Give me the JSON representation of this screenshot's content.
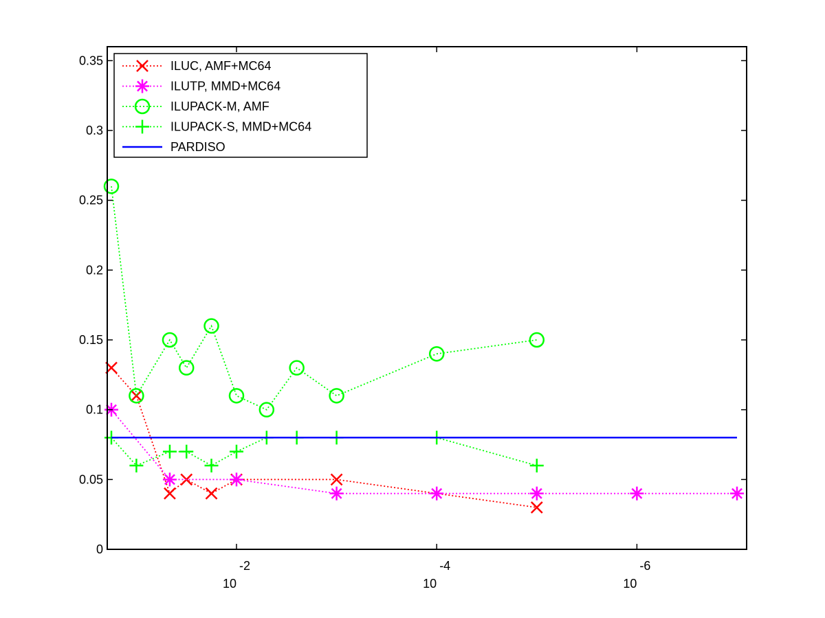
{
  "chart_data": {
    "type": "line",
    "title": "",
    "xlabel": "",
    "ylabel": "",
    "x_scale": "log",
    "x_reversed": true,
    "xlim": [
      0.1778,
      1e-07
    ],
    "ylim": [
      0,
      0.36
    ],
    "grid": false,
    "legend_position": "top-left",
    "yticks": [
      {
        "value": 0,
        "label": "0"
      },
      {
        "value": 0.05,
        "label": "0.05"
      },
      {
        "value": 0.1,
        "label": "0.1"
      },
      {
        "value": 0.15,
        "label": "0.15"
      },
      {
        "value": 0.2,
        "label": "0.2"
      },
      {
        "value": 0.25,
        "label": "0.25"
      },
      {
        "value": 0.3,
        "label": "0.3"
      },
      {
        "value": 0.35,
        "label": "0.35"
      }
    ],
    "xticks": [
      {
        "value": 0.01,
        "base": "10",
        "exponent": "-2"
      },
      {
        "value": 0.0001,
        "base": "10",
        "exponent": "-4"
      },
      {
        "value": 1e-06,
        "base": "10",
        "exponent": "-6"
      }
    ],
    "series": [
      {
        "name": "ILUC, AMF+MC64",
        "color": "#ff0000",
        "marker": "x",
        "line": "dotted",
        "x": [
          0.1778,
          0.1,
          0.0464,
          0.0316,
          0.0178,
          0.01,
          0.001,
          1e-05
        ],
        "y": [
          0.13,
          0.11,
          0.04,
          0.05,
          0.04,
          0.05,
          0.05,
          0.03
        ]
      },
      {
        "name": "ILUTP, MMD+MC64",
        "color": "#ff00ff",
        "marker": "asterisk",
        "line": "dotted",
        "x": [
          0.1778,
          0.0464,
          0.01,
          0.001,
          0.0001,
          1e-05,
          1e-06,
          1e-07
        ],
        "y": [
          0.1,
          0.05,
          0.05,
          0.04,
          0.04,
          0.04,
          0.04,
          0.04
        ]
      },
      {
        "name": "ILUPACK-M, AMF",
        "color": "#00ff00",
        "marker": "circle",
        "line": "dotted",
        "x": [
          0.1778,
          0.1,
          0.0464,
          0.0316,
          0.0178,
          0.01,
          0.005,
          0.0025,
          0.001,
          0.0001,
          1e-05
        ],
        "y": [
          0.26,
          0.11,
          0.15,
          0.13,
          0.16,
          0.11,
          0.1,
          0.13,
          0.11,
          0.14,
          0.15
        ]
      },
      {
        "name": "ILUPACK-S, MMD+MC64",
        "color": "#00ff00",
        "marker": "plus",
        "line": "dotted",
        "x": [
          0.1778,
          0.1,
          0.0464,
          0.0316,
          0.0178,
          0.01,
          0.005,
          0.0025,
          0.001,
          0.0001,
          1e-05
        ],
        "y": [
          0.08,
          0.06,
          0.07,
          0.07,
          0.06,
          0.07,
          0.08,
          0.08,
          0.08,
          0.08,
          0.06
        ]
      },
      {
        "name": "PARDISO",
        "color": "#0000ff",
        "marker": "none",
        "line": "solid",
        "x": [
          0.1778,
          1e-07
        ],
        "y": [
          0.08,
          0.08
        ]
      }
    ]
  }
}
